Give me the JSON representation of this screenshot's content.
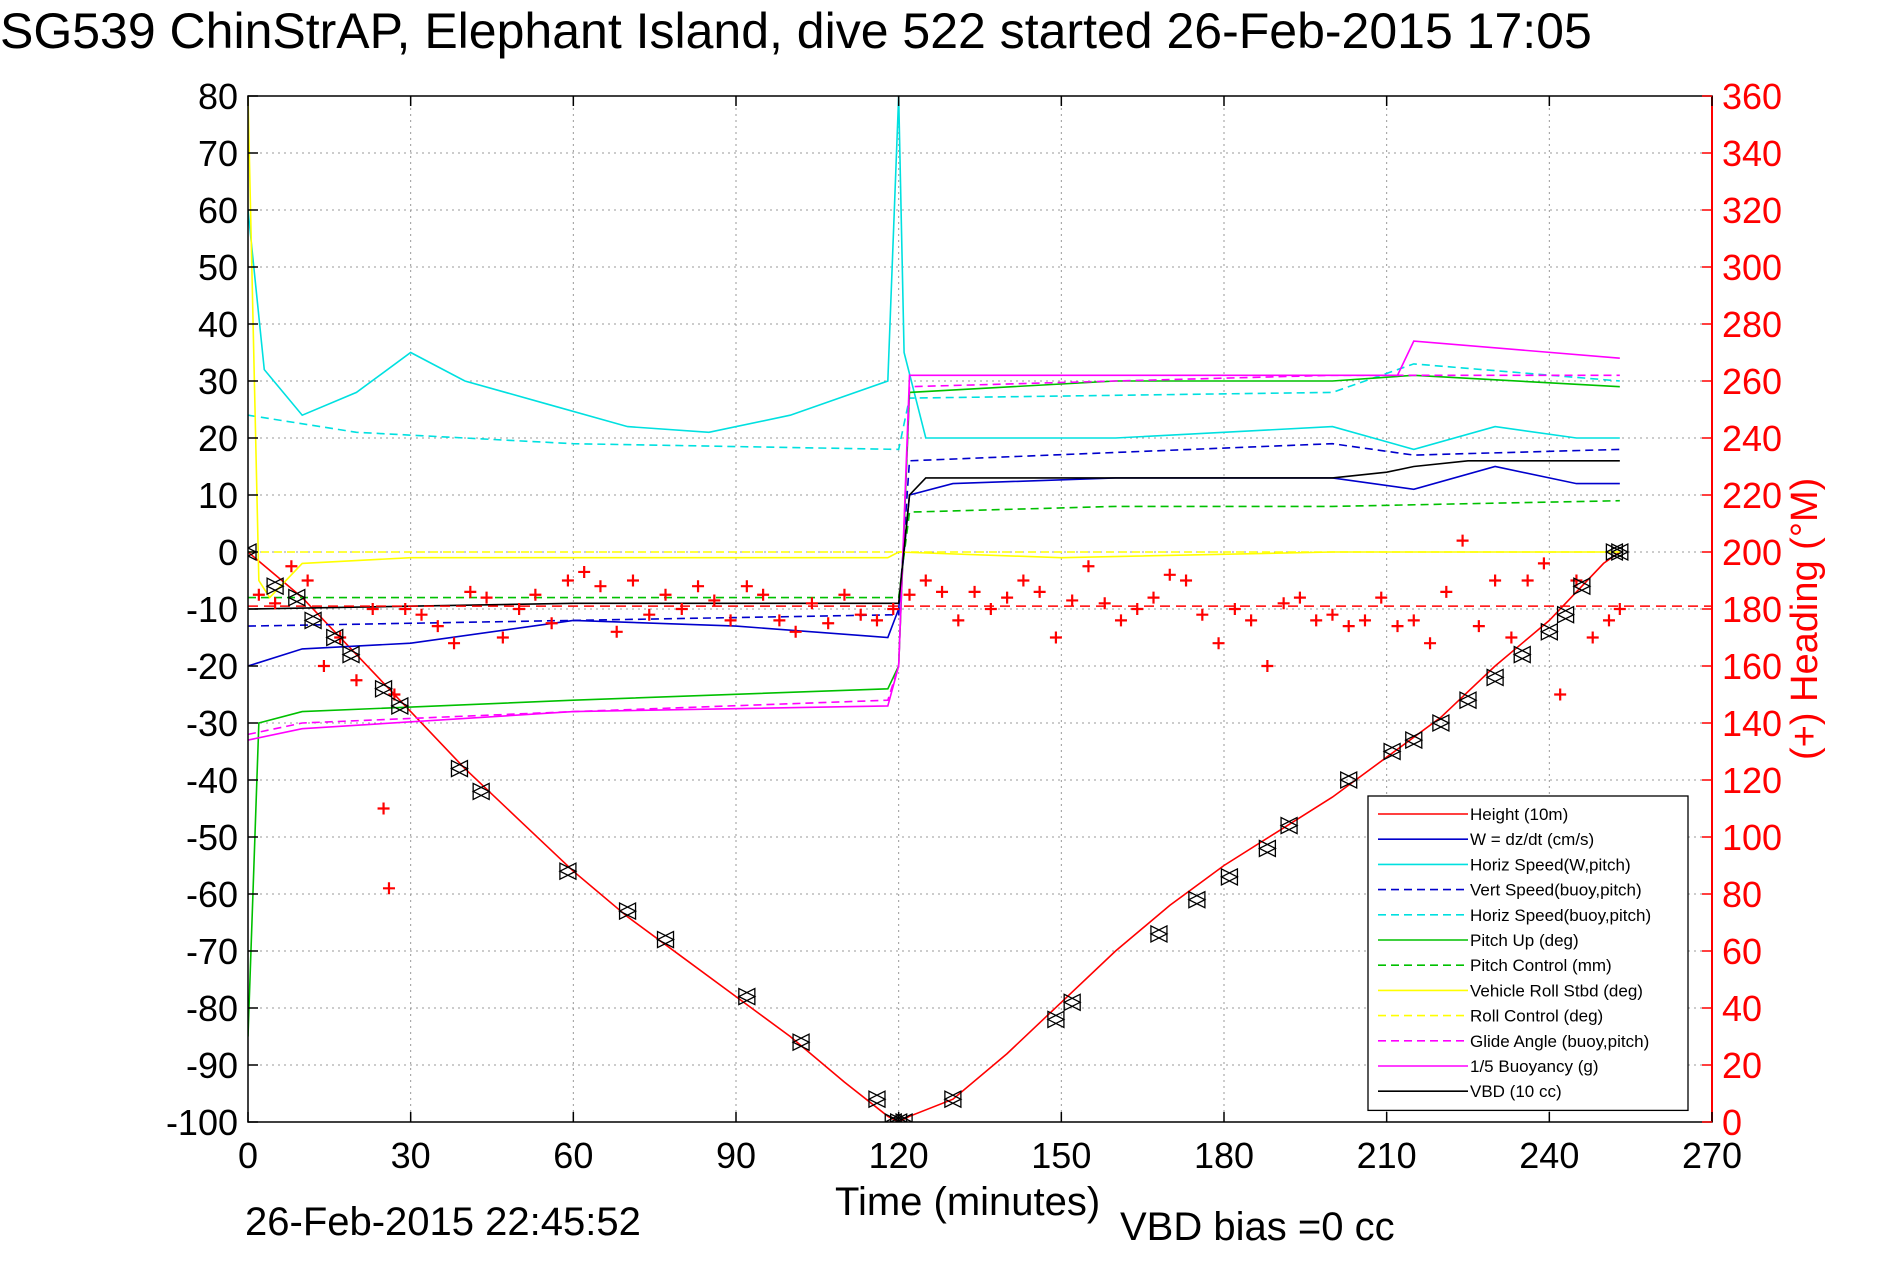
{
  "chart_data": {
    "type": "line",
    "title": "SG539 ChinStrAP, Elephant Island, dive 522 started 26-Feb-2015 17:05",
    "xlabel": "Time (minutes)",
    "ylabel": "",
    "ylabel_right": "(+) Heading (°M)",
    "xlim": [
      0,
      270
    ],
    "ylim": [
      -100,
      80
    ],
    "ylim_right": [
      0,
      360
    ],
    "x_ticks": [
      "0",
      "30",
      "60",
      "90",
      "120",
      "150",
      "180",
      "210",
      "240",
      "270"
    ],
    "y_ticks": [
      "80",
      "70",
      "60",
      "50",
      "40",
      "30",
      "20",
      "10",
      "0",
      "-10",
      "-20",
      "-30",
      "-40",
      "-50",
      "-60",
      "-70",
      "-80",
      "-90",
      "-100"
    ],
    "y_ticks_right": [
      "360",
      "340",
      "320",
      "300",
      "280",
      "260",
      "240",
      "220",
      "200",
      "180",
      "160",
      "140",
      "120",
      "100",
      "80",
      "60",
      "40",
      "20",
      "0"
    ],
    "grid": true,
    "legend_position": "bottom-right",
    "series": [
      {
        "name": "Height (10m)",
        "color": "#ff0000",
        "style": "solid",
        "x": [
          0,
          10,
          20,
          30,
          40,
          50,
          60,
          70,
          80,
          90,
          100,
          110,
          118,
          120,
          122,
          130,
          140,
          150,
          160,
          170,
          180,
          190,
          200,
          210,
          220,
          230,
          240,
          250,
          253
        ],
        "y": [
          0,
          -8,
          -18,
          -28,
          -38,
          -47,
          -56,
          -64,
          -71,
          -78,
          -85,
          -93,
          -99,
          -100,
          -99,
          -96,
          -88,
          -79,
          -70,
          -62,
          -55,
          -49,
          -43,
          -36,
          -29,
          -20,
          -12,
          -2,
          0
        ]
      },
      {
        "name": "W = dz/dt (cm/s)",
        "color": "#0000cc",
        "style": "solid",
        "x": [
          0,
          10,
          30,
          60,
          90,
          118,
          120,
          122,
          130,
          160,
          200,
          215,
          230,
          245,
          253
        ],
        "y": [
          -20,
          -17,
          -16,
          -12,
          -13,
          -15,
          -10,
          10,
          12,
          13,
          13,
          11,
          15,
          12,
          12
        ]
      },
      {
        "name": "Horiz Speed(W,pitch)",
        "color": "#00e0e0",
        "style": "solid",
        "x": [
          0,
          3,
          10,
          20,
          30,
          40,
          55,
          70,
          85,
          100,
          118,
          120,
          121,
          125,
          160,
          200,
          215,
          230,
          245,
          253
        ],
        "y": [
          60,
          32,
          24,
          28,
          35,
          30,
          26,
          22,
          21,
          24,
          30,
          80,
          35,
          20,
          20,
          22,
          18,
          22,
          20,
          20
        ]
      },
      {
        "name": "Vert Speed(buoy,pitch)",
        "color": "#0000cc",
        "style": "dashed",
        "x": [
          0,
          120,
          122,
          200,
          215,
          253
        ],
        "y": [
          -13,
          -11,
          16,
          19,
          17,
          18
        ]
      },
      {
        "name": "Horiz Speed(buoy,pitch)",
        "color": "#00e0e0",
        "style": "dashed",
        "x": [
          0,
          20,
          60,
          120,
          122,
          200,
          215,
          253
        ],
        "y": [
          24,
          21,
          19,
          18,
          27,
          28,
          33,
          30
        ]
      },
      {
        "name": "Pitch Up (deg)",
        "color": "#00c000",
        "style": "solid",
        "x": [
          0,
          2,
          10,
          60,
          118,
          120,
          122,
          160,
          200,
          215,
          253
        ],
        "y": [
          -85,
          -30,
          -28,
          -26,
          -24,
          -20,
          28,
          30,
          30,
          31,
          29
        ]
      },
      {
        "name": "Pitch Control (mm)",
        "color": "#00c000",
        "style": "dashed",
        "x": [
          0,
          120,
          122,
          160,
          200,
          253
        ],
        "y": [
          -8,
          -8,
          7,
          8,
          8,
          9
        ]
      },
      {
        "name": "Vehicle Roll Stbd (deg)",
        "color": "#ffff00",
        "style": "solid",
        "x": [
          0,
          2,
          4,
          10,
          30,
          60,
          90,
          118,
          120,
          150,
          200,
          215,
          253
        ],
        "y": [
          80,
          -5,
          -8,
          -2,
          -1,
          -1,
          -1,
          -1,
          0,
          -1,
          0,
          0,
          0
        ]
      },
      {
        "name": "Roll Control (deg)",
        "color": "#ffff00",
        "style": "dashed",
        "x": [
          0,
          253
        ],
        "y": [
          0,
          0
        ]
      },
      {
        "name": "Glide Angle (buoy,pitch)",
        "color": "#ff00ff",
        "style": "dashed",
        "x": [
          0,
          10,
          60,
          118,
          120,
          122,
          160,
          200,
          253
        ],
        "y": [
          -32,
          -30,
          -28,
          -26,
          -20,
          29,
          30,
          31,
          31
        ]
      },
      {
        "name": "1/5 Buoyancy (g)",
        "color": "#ff00ff",
        "style": "solid",
        "x": [
          0,
          10,
          60,
          118,
          120,
          122,
          200,
          212,
          215,
          253
        ],
        "y": [
          -33,
          -31,
          -28,
          -27,
          -20,
          31,
          31,
          31,
          37,
          34
        ]
      },
      {
        "name": "VBD (10 cc)",
        "color": "#000000",
        "style": "solid",
        "x": [
          0,
          60,
          118,
          120,
          122,
          125,
          200,
          210,
          215,
          225,
          253
        ],
        "y": [
          -10,
          -9,
          -9,
          -9,
          10,
          13,
          13,
          14,
          15,
          16,
          16
        ]
      }
    ],
    "heading_series": {
      "axis": "right",
      "color": "#ff0000",
      "marker": "+",
      "x": [
        2,
        5,
        8,
        11,
        14,
        17,
        20,
        23,
        25,
        26,
        27,
        29,
        32,
        35,
        38,
        41,
        44,
        47,
        50,
        53,
        56,
        59,
        62,
        65,
        68,
        71,
        74,
        77,
        80,
        83,
        86,
        89,
        92,
        95,
        98,
        101,
        104,
        107,
        110,
        113,
        116,
        119,
        122,
        125,
        128,
        131,
        134,
        137,
        140,
        143,
        146,
        149,
        152,
        155,
        158,
        161,
        164,
        167,
        170,
        173,
        176,
        179,
        182,
        185,
        188,
        191,
        194,
        197,
        200,
        203,
        206,
        209,
        212,
        215,
        218,
        221,
        224,
        227,
        230,
        233,
        236,
        239,
        242,
        245,
        248,
        251,
        253
      ],
      "y": [
        185,
        182,
        195,
        190,
        160,
        170,
        155,
        180,
        110,
        82,
        150,
        180,
        178,
        174,
        168,
        186,
        184,
        170,
        180,
        185,
        175,
        190,
        193,
        188,
        172,
        190,
        178,
        185,
        180,
        188,
        183,
        176,
        188,
        185,
        176,
        172,
        182,
        175,
        185,
        178,
        176,
        180,
        185,
        190,
        186,
        176,
        186,
        180,
        184,
        190,
        186,
        170,
        183,
        195,
        182,
        176,
        180,
        184,
        192,
        190,
        178,
        168,
        180,
        176,
        160,
        182,
        184,
        176,
        178,
        174,
        176,
        184,
        174,
        176,
        168,
        186,
        204,
        174,
        190,
        170,
        190,
        196,
        150,
        190,
        170,
        176,
        180
      ]
    },
    "heading_reference": {
      "value": 181,
      "color": "#ff0000",
      "style": "dashed"
    },
    "markers": {
      "color": "#000000",
      "shape": "triangle",
      "x": [
        0,
        5,
        9,
        12,
        16,
        19,
        25,
        28,
        39,
        43,
        59,
        70,
        77,
        92,
        102,
        116,
        119,
        120,
        121,
        130,
        149,
        152,
        168,
        175,
        181,
        188,
        192,
        203,
        211,
        215,
        220,
        225,
        230,
        235,
        240,
        243,
        246,
        252,
        253
      ],
      "y": [
        0,
        -6,
        -8,
        -12,
        -15,
        -18,
        -24,
        -27,
        -38,
        -42,
        -56,
        -63,
        -68,
        -78,
        -86,
        -96,
        -100,
        -100,
        -100,
        -96,
        -82,
        -79,
        -67,
        -61,
        -57,
        -52,
        -48,
        -40,
        -35,
        -33,
        -30,
        -26,
        -22,
        -18,
        -14,
        -11,
        -6,
        0,
        0
      ]
    }
  },
  "footer": {
    "timestamp": "26-Feb-2015 22:45:52",
    "vbd_bias": "VBD bias =0 cc"
  }
}
